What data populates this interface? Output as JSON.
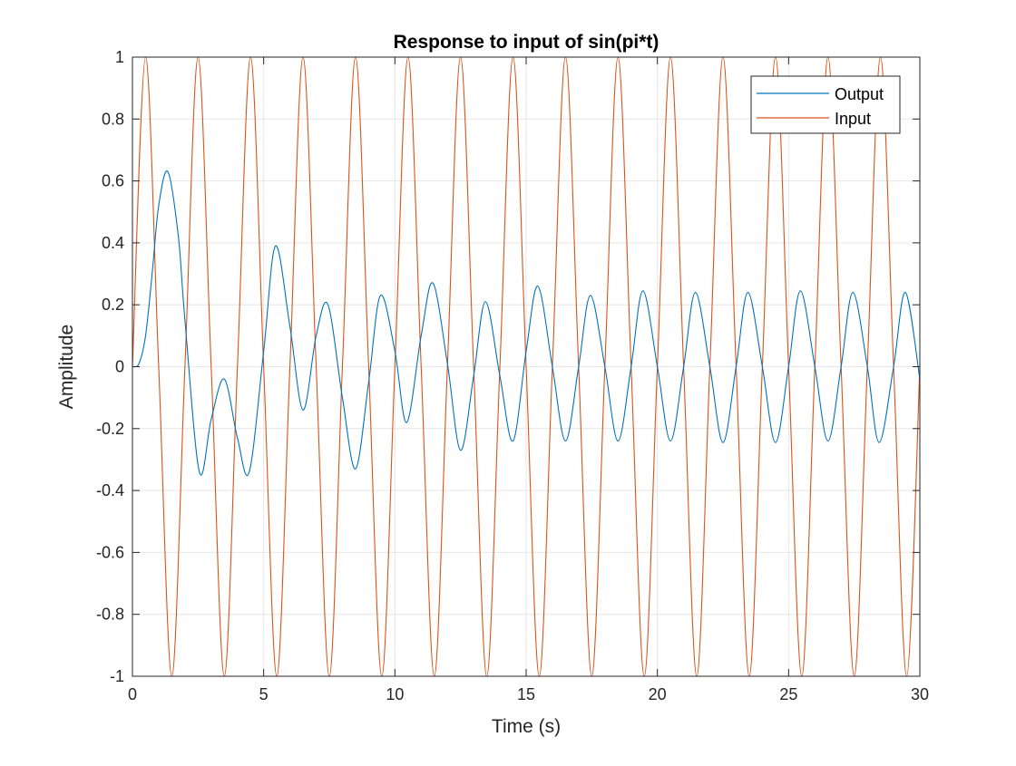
{
  "chart_data": {
    "type": "line",
    "title": "Response to input of sin(pi*t)",
    "xlabel": "Time (s)",
    "ylabel": "Amplitude",
    "xlim": [
      0,
      30
    ],
    "ylim": [
      -1,
      1
    ],
    "xticks": [
      0,
      5,
      10,
      15,
      20,
      25,
      30
    ],
    "xtick_labels": [
      "0",
      "5",
      "10",
      "15",
      "20",
      "25",
      "30"
    ],
    "yticks": [
      -1,
      -0.8,
      -0.6,
      -0.4,
      -0.2,
      0,
      0.2,
      0.4,
      0.6,
      0.8,
      1
    ],
    "ytick_labels": [
      "-1",
      "-0.8",
      "-0.6",
      "-0.4",
      "-0.2",
      "0",
      "0.2",
      "0.4",
      "0.6",
      "0.8",
      "1"
    ],
    "grid": true,
    "legend_position": "top-right",
    "series": [
      {
        "name": "Output",
        "color": "#0072BD",
        "x": [
          0,
          0.25,
          0.5,
          0.75,
          1,
          1.35,
          1.75,
          2,
          2.55,
          3,
          3.5,
          4,
          4.45,
          5,
          5.45,
          6,
          6.5,
          7,
          7.45,
          8,
          8.5,
          9,
          9.45,
          10,
          10.45,
          11,
          11.45,
          12,
          12.5,
          13,
          13.45,
          14,
          14.5,
          15,
          15.45,
          16,
          16.5,
          17,
          17.45,
          18,
          18.5,
          19,
          19.45,
          20,
          20.5,
          21,
          21.45,
          22,
          22.5,
          23,
          23.45,
          24,
          24.5,
          25,
          25.45,
          26,
          26.5,
          27,
          27.45,
          28,
          28.45,
          29,
          29.45,
          30
        ],
        "y": [
          0,
          0.01,
          0.1,
          0.3,
          0.52,
          0.63,
          0.42,
          0.15,
          -0.34,
          -0.17,
          -0.04,
          -0.23,
          -0.34,
          0.05,
          0.39,
          0.13,
          -0.14,
          0.1,
          0.2,
          -0.1,
          -0.33,
          -0.05,
          0.23,
          0.05,
          -0.18,
          0.1,
          0.27,
          0.01,
          -0.27,
          -0.03,
          0.21,
          -0.03,
          -0.24,
          0.05,
          0.26,
          0,
          -0.24,
          0,
          0.23,
          0,
          -0.24,
          0,
          0.245,
          0,
          -0.24,
          0,
          0.24,
          0,
          -0.245,
          0,
          0.24,
          0,
          -0.245,
          0,
          0.245,
          0,
          -0.24,
          0,
          0.24,
          0,
          -0.245,
          0,
          0.24,
          -0.04
        ]
      },
      {
        "name": "Input",
        "color": "#D95319",
        "x": [
          0,
          0.5,
          1,
          1.5,
          2,
          2.5,
          3,
          3.5,
          4,
          4.5,
          5,
          5.5,
          6,
          6.5,
          7,
          7.5,
          8,
          8.5,
          9,
          9.5,
          10,
          10.5,
          11,
          11.5,
          12,
          12.5,
          13,
          13.5,
          14,
          14.5,
          15,
          15.5,
          16,
          16.5,
          17,
          17.5,
          18,
          18.5,
          19,
          19.5,
          20,
          20.5,
          21,
          21.5,
          22,
          22.5,
          23,
          23.5,
          24,
          24.5,
          25,
          25.5,
          26,
          26.5,
          27,
          27.5,
          28,
          28.5,
          29,
          29.5,
          30
        ],
        "y": [
          0,
          1,
          0,
          -1,
          0,
          1,
          0,
          -1,
          0,
          1,
          0,
          -1,
          0,
          1,
          0,
          -1,
          0,
          1,
          0,
          -1,
          0,
          1,
          0,
          -1,
          0,
          1,
          0,
          -1,
          0,
          1,
          0,
          -1,
          0,
          1,
          0,
          -1,
          0,
          1,
          0,
          -1,
          0,
          1,
          0,
          -1,
          0,
          1,
          0,
          -1,
          0,
          1,
          0,
          -1,
          0,
          1,
          0,
          -1,
          0,
          1,
          0,
          -1,
          0
        ]
      }
    ]
  }
}
